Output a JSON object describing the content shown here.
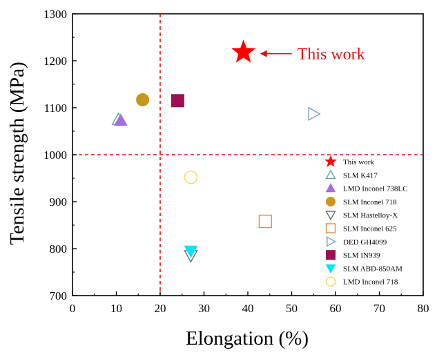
{
  "chart_data": {
    "type": "scatter",
    "xlabel": "Elongation (%)",
    "ylabel": "Tensile strength (MPa)",
    "xlim": [
      0,
      80
    ],
    "ylim": [
      700,
      1300
    ],
    "xticks": [
      0,
      10,
      20,
      30,
      40,
      50,
      60,
      70,
      80
    ],
    "yticks": [
      700,
      800,
      900,
      1000,
      1100,
      1200,
      1300
    ],
    "reference_lines": {
      "x": 20,
      "y": 1000,
      "color": "#e01010"
    },
    "annotation": {
      "text": "This work",
      "color": "#e01010"
    },
    "legend_position": "lower-right",
    "series": [
      {
        "name": "This work",
        "marker": "star",
        "filled": true,
        "color": "#ff0000",
        "x": 39,
        "y": 1218
      },
      {
        "name": "SLM K417",
        "marker": "triangle-up",
        "filled": false,
        "color": "#5aa88a",
        "x": 10.5,
        "y": 1075
      },
      {
        "name": "LMD Inconel 738LC",
        "marker": "triangle-up",
        "filled": true,
        "color": "#a070e0",
        "x": 11,
        "y": 1073
      },
      {
        "name": "SLM Inconel 718",
        "marker": "circle",
        "filled": true,
        "color": "#c8961c",
        "x": 16,
        "y": 1117
      },
      {
        "name": "SLM Hastelloy-X",
        "marker": "triangle-down",
        "filled": false,
        "color": "#6a6a6a",
        "x": 27,
        "y": 785
      },
      {
        "name": "SLM Inconel 625",
        "marker": "square",
        "filled": false,
        "color": "#e88a3a",
        "x": 44,
        "y": 858
      },
      {
        "name": "DED GH4099",
        "marker": "triangle-right",
        "filled": false,
        "color": "#7a98c8",
        "x": 55,
        "y": 1087
      },
      {
        "name": "SLM IN939",
        "marker": "square",
        "filled": true,
        "color": "#9b1050",
        "x": 24,
        "y": 1115
      },
      {
        "name": "SLM ABD-850AM",
        "marker": "triangle-down",
        "filled": true,
        "color": "#00e6ee",
        "x": 27,
        "y": 795
      },
      {
        "name": "LMD Inconel 718",
        "marker": "circle",
        "filled": false,
        "color": "#f0d860",
        "x": 27,
        "y": 952
      }
    ]
  }
}
